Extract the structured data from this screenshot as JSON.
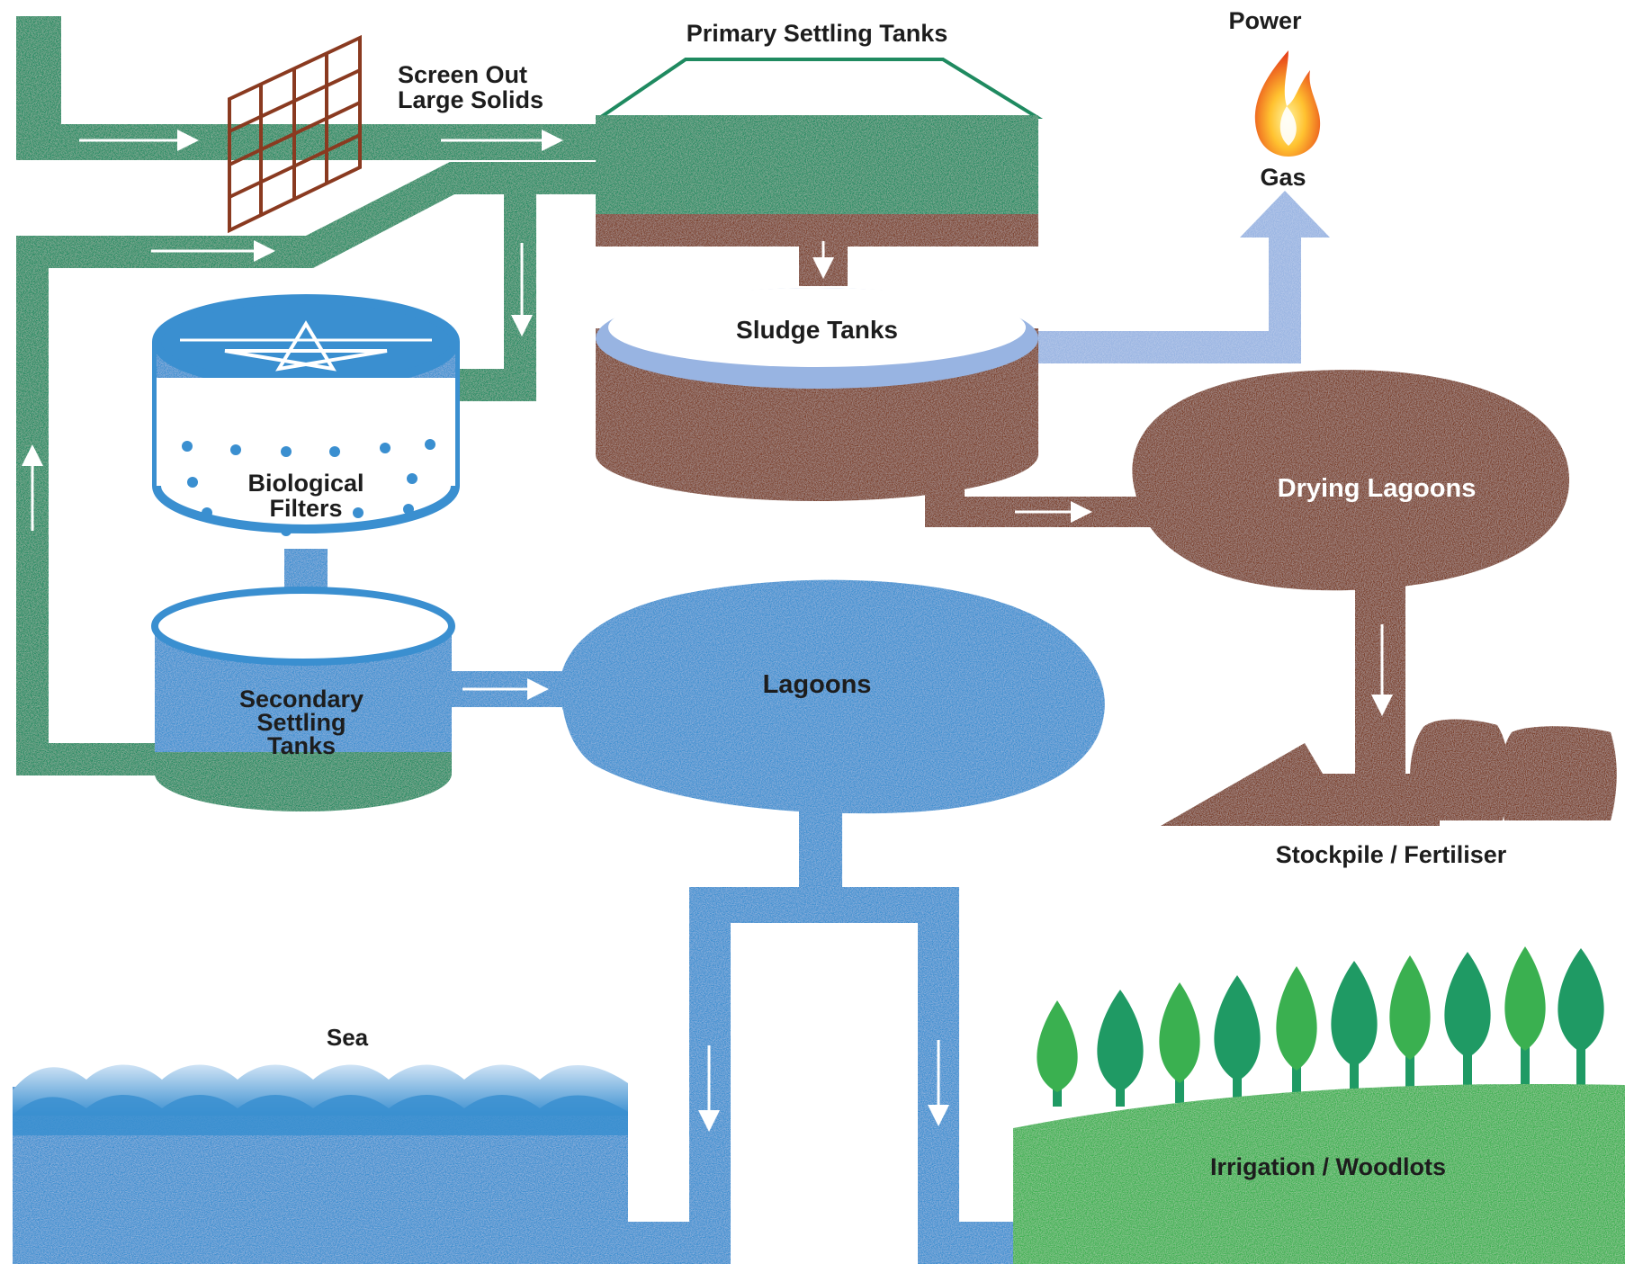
{
  "labels": {
    "screen": "Screen Out",
    "screen_2": "Large Solids",
    "primary": "Primary Settling Tanks",
    "power": "Power",
    "gas": "Gas",
    "sludge": "Sludge Tanks",
    "bio_1": "Biological",
    "bio_2": "Filters",
    "drying": "Drying Lagoons",
    "sec_1": "Secondary",
    "sec_2": "Settling",
    "sec_3": "Tanks",
    "lagoons": "Lagoons",
    "stockpile": "Stockpile / Fertiliser",
    "sea": "Sea",
    "irrigation": "Irrigation / Woodlots"
  },
  "colors": {
    "water_green": "#1f8a60",
    "sludge_brown": "#7a3e26",
    "water_blue": "#3a8fd0",
    "gas_lilac": "#98b4e2",
    "screen_brown": "#8a3a20",
    "tree_green": "#1f9a64",
    "field_green": "#3ab050"
  },
  "icons": [
    "flame-icon",
    "screen-grid-icon",
    "sack-icon",
    "tree-icon",
    "wave-icon"
  ]
}
